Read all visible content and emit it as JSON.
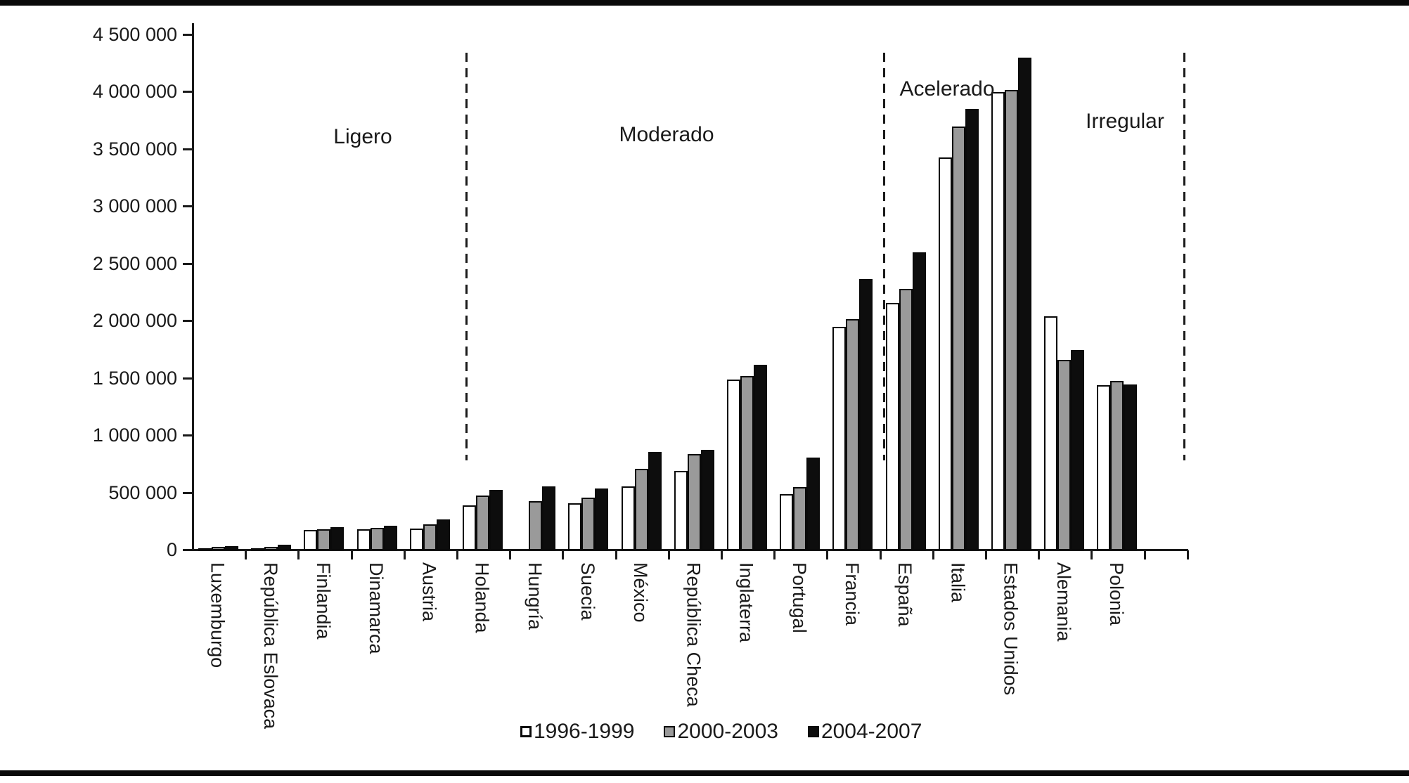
{
  "chart_data": {
    "type": "bar",
    "title": "",
    "xlabel": "",
    "ylabel": "",
    "ylim": [
      0,
      4500000
    ],
    "ytick_step": 500000,
    "ytick_labels": [
      "0",
      "500 000",
      "1 000 000",
      "1 500 000",
      "2 000 000",
      "2 500 000",
      "3 000 000",
      "3 500 000",
      "4 000 000",
      "4 500 000"
    ],
    "grid": false,
    "legend_position": "bottom-center",
    "categories": [
      "Luxemburgo",
      "República Eslovaca",
      "Finlandia",
      "Dinamarca",
      "Austria",
      "Holanda",
      "Hungría",
      "Suecia",
      "México",
      "República Checa",
      "Inglaterra",
      "Portugal",
      "Francia",
      "España",
      "Italia",
      "Estados Unidos",
      "Alemania",
      "Polonia"
    ],
    "series": [
      {
        "name": "1996-1999",
        "color": "#ffffff",
        "values": [
          15000,
          5000,
          180000,
          185000,
          190000,
          390000,
          0,
          410000,
          560000,
          695000,
          1490000,
          490000,
          1950000,
          2160000,
          3430000,
          4000000,
          2040000,
          1440000
        ]
      },
      {
        "name": "2000-2003",
        "color": "#9a9a9a",
        "values": [
          30000,
          30000,
          185000,
          195000,
          230000,
          480000,
          430000,
          460000,
          710000,
          840000,
          1520000,
          550000,
          2020000,
          2280000,
          3700000,
          4020000,
          1660000,
          1480000
        ]
      },
      {
        "name": "2004-2007",
        "color": "#0d0d0d",
        "values": [
          35000,
          50000,
          205000,
          215000,
          270000,
          525000,
          560000,
          540000,
          860000,
          875000,
          1620000,
          810000,
          2370000,
          2600000,
          3850000,
          4300000,
          1750000,
          1450000
        ]
      }
    ],
    "sections": [
      {
        "label": "Ligero",
        "from": 0,
        "to": 4
      },
      {
        "label": "Moderado",
        "from": 5,
        "to": 12
      },
      {
        "label": "Acelerado",
        "from": 13,
        "to": 15
      },
      {
        "label": "Irregular",
        "from": 16,
        "to": 17
      }
    ],
    "separators_after_category": [
      4,
      12,
      17
    ]
  },
  "legend": {
    "items": [
      "1996-1999",
      "2000-2003",
      "2004-2007"
    ]
  },
  "colors": {
    "axis": "#1a1a1a",
    "bar_outline": "#0a0a0a",
    "series_white": "#ffffff",
    "series_gray": "#9a9a9a",
    "series_black": "#0d0d0d"
  }
}
